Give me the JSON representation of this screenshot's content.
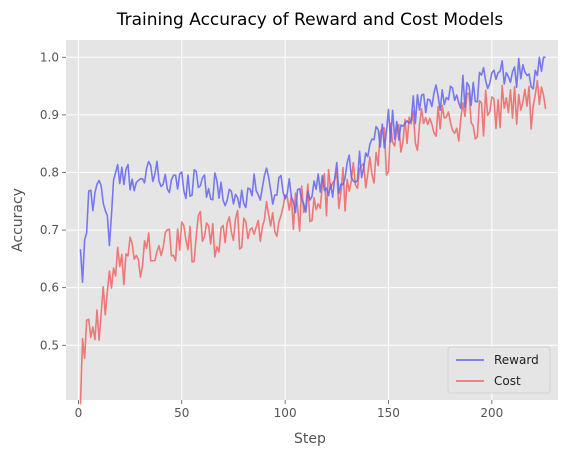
{
  "chart_data": {
    "type": "line",
    "title": "Training Accuracy of Reward and Cost Models",
    "xlabel": "Step",
    "ylabel": "Accuracy",
    "xlim": [
      -6,
      232
    ],
    "ylim": [
      0.405,
      1.03
    ],
    "xticks": [
      0,
      50,
      100,
      150,
      200
    ],
    "yticks": [
      0.5,
      0.6,
      0.7,
      0.8,
      0.9,
      1.0
    ],
    "ytick_labels": [
      "0.5",
      "0.6",
      "0.7",
      "0.8",
      "0.9",
      "1.0"
    ],
    "grid": true,
    "legend_position": "lower-right",
    "series": [
      {
        "name": "Reward",
        "color": "#6464f0",
        "anchors": [
          [
            1,
            0.645
          ],
          [
            2,
            0.625
          ],
          [
            4,
            0.7
          ],
          [
            5,
            0.75
          ],
          [
            8,
            0.765
          ],
          [
            10,
            0.8
          ],
          [
            12,
            0.755
          ],
          [
            15,
            0.69
          ],
          [
            18,
            0.8
          ],
          [
            20,
            0.79
          ],
          [
            25,
            0.79
          ],
          [
            28,
            0.8
          ],
          [
            32,
            0.775
          ],
          [
            35,
            0.8
          ],
          [
            40,
            0.79
          ],
          [
            45,
            0.78
          ],
          [
            50,
            0.78
          ],
          [
            55,
            0.79
          ],
          [
            60,
            0.79
          ],
          [
            65,
            0.77
          ],
          [
            70,
            0.77
          ],
          [
            75,
            0.755
          ],
          [
            80,
            0.76
          ],
          [
            85,
            0.77
          ],
          [
            90,
            0.78
          ],
          [
            95,
            0.77
          ],
          [
            100,
            0.78
          ],
          [
            105,
            0.76
          ],
          [
            110,
            0.76
          ],
          [
            115,
            0.77
          ],
          [
            120,
            0.78
          ],
          [
            125,
            0.79
          ],
          [
            130,
            0.8
          ],
          [
            135,
            0.815
          ],
          [
            140,
            0.83
          ],
          [
            145,
            0.86
          ],
          [
            150,
            0.88
          ],
          [
            155,
            0.88
          ],
          [
            160,
            0.9
          ],
          [
            165,
            0.91
          ],
          [
            170,
            0.92
          ],
          [
            175,
            0.93
          ],
          [
            180,
            0.93
          ],
          [
            185,
            0.94
          ],
          [
            190,
            0.94
          ],
          [
            195,
            0.95
          ],
          [
            200,
            0.96
          ],
          [
            205,
            0.965
          ],
          [
            210,
            0.97
          ],
          [
            215,
            0.975
          ],
          [
            220,
            0.975
          ],
          [
            225,
            0.98
          ]
        ],
        "amplitude": 0.03
      },
      {
        "name": "Cost",
        "color": "#f06464",
        "anchors": [
          [
            1,
            0.43
          ],
          [
            2,
            0.49
          ],
          [
            4,
            0.5
          ],
          [
            6,
            0.51
          ],
          [
            8,
            0.52
          ],
          [
            10,
            0.53
          ],
          [
            12,
            0.56
          ],
          [
            15,
            0.6
          ],
          [
            18,
            0.63
          ],
          [
            20,
            0.64
          ],
          [
            25,
            0.65
          ],
          [
            30,
            0.66
          ],
          [
            35,
            0.665
          ],
          [
            40,
            0.67
          ],
          [
            45,
            0.675
          ],
          [
            50,
            0.68
          ],
          [
            55,
            0.685
          ],
          [
            60,
            0.69
          ],
          [
            65,
            0.69
          ],
          [
            70,
            0.695
          ],
          [
            75,
            0.7
          ],
          [
            80,
            0.705
          ],
          [
            85,
            0.71
          ],
          [
            90,
            0.715
          ],
          [
            95,
            0.72
          ],
          [
            100,
            0.73
          ],
          [
            105,
            0.735
          ],
          [
            110,
            0.74
          ],
          [
            115,
            0.75
          ],
          [
            120,
            0.76
          ],
          [
            125,
            0.77
          ],
          [
            130,
            0.78
          ],
          [
            135,
            0.79
          ],
          [
            140,
            0.81
          ],
          [
            145,
            0.83
          ],
          [
            150,
            0.84
          ],
          [
            155,
            0.86
          ],
          [
            160,
            0.87
          ],
          [
            165,
            0.88
          ],
          [
            170,
            0.88
          ],
          [
            175,
            0.89
          ],
          [
            180,
            0.89
          ],
          [
            185,
            0.895
          ],
          [
            190,
            0.9
          ],
          [
            195,
            0.905
          ],
          [
            200,
            0.91
          ],
          [
            205,
            0.915
          ],
          [
            210,
            0.92
          ],
          [
            215,
            0.92
          ],
          [
            220,
            0.92
          ],
          [
            225,
            0.92
          ]
        ],
        "amplitude": 0.045
      }
    ]
  }
}
